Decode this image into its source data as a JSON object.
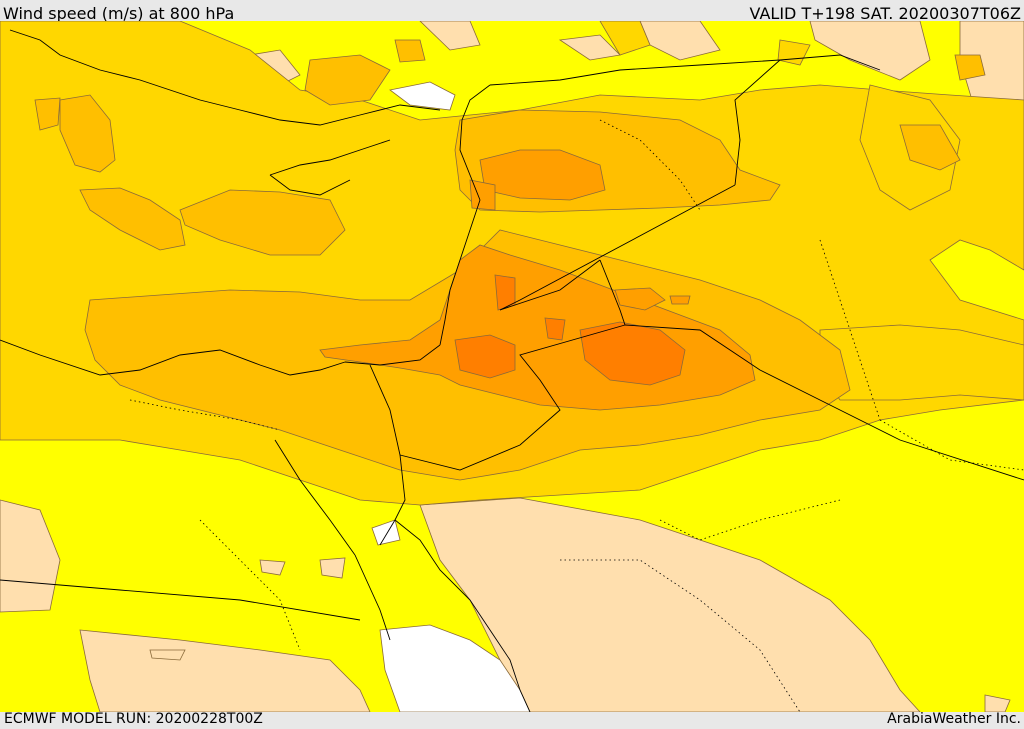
{
  "header": {
    "title": "Wind speed (m/s) at 800 hPa",
    "valid": "VALID T+198 SAT. 20200307T06Z"
  },
  "footer": {
    "model_run": "ECMWF MODEL RUN: 20200228T00Z",
    "credit": "ArabiaWeather Inc."
  },
  "map": {
    "variable": "wind speed",
    "level": "800 hPa",
    "units": "m/s",
    "palette": {
      "calm": "#ffffff",
      "very_light": "#ffdfae",
      "light": "#ffff00",
      "moderate": "#ffd700",
      "fresh": "#ffbf00",
      "strong": "#ff9f00",
      "very_strong": "#ff7f00",
      "contour_line": "#8a6a3a",
      "border_line": "#000000"
    }
  }
}
